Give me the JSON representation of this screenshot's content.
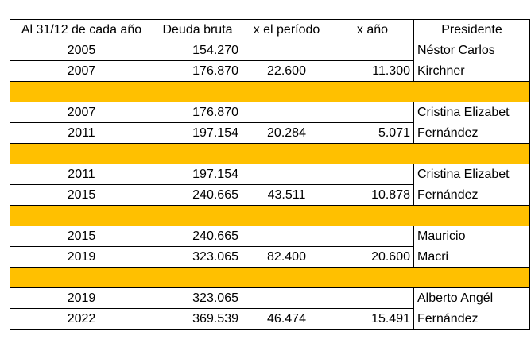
{
  "headers": [
    "Al 31/12 de cada año",
    "Deuda bruta",
    "x el período",
    "x año",
    "Presidente"
  ],
  "blocks": [
    {
      "rows": [
        {
          "year": "2005",
          "debt": "154.270",
          "period": "",
          "annual": "",
          "president": "Néstor Carlos"
        },
        {
          "year": "2007",
          "debt": "176.870",
          "period": "22.600",
          "annual": "11.300",
          "president": "Kirchner"
        }
      ]
    },
    {
      "rows": [
        {
          "year": "2007",
          "debt": "176.870",
          "period": "",
          "annual": "",
          "president": "Cristina Elizabet"
        },
        {
          "year": "2011",
          "debt": "197.154",
          "period": "20.284",
          "annual": "5.071",
          "president": "Fernández"
        }
      ]
    },
    {
      "rows": [
        {
          "year": "2011",
          "debt": "197.154",
          "period": "",
          "annual": "",
          "president": "Cristina Elizabet"
        },
        {
          "year": "2015",
          "debt": "240.665",
          "period": "43.511",
          "annual": "10.878",
          "president": "Fernández"
        }
      ]
    },
    {
      "rows": [
        {
          "year": "2015",
          "debt": "240.665",
          "period": "",
          "annual": "",
          "president": "Mauricio"
        },
        {
          "year": "2019",
          "debt": "323.065",
          "period": "82.400",
          "annual": "20.600",
          "president": "Macri"
        }
      ]
    },
    {
      "rows": [
        {
          "year": "2019",
          "debt": "323.065",
          "period": "",
          "annual": "",
          "president": "Alberto Angél"
        },
        {
          "year": "2022",
          "debt": "369.539",
          "period": "46.474",
          "annual": "15.491",
          "president": "Fernández"
        }
      ]
    }
  ],
  "colors": {
    "separator": "#ffc000",
    "border": "#000000"
  }
}
